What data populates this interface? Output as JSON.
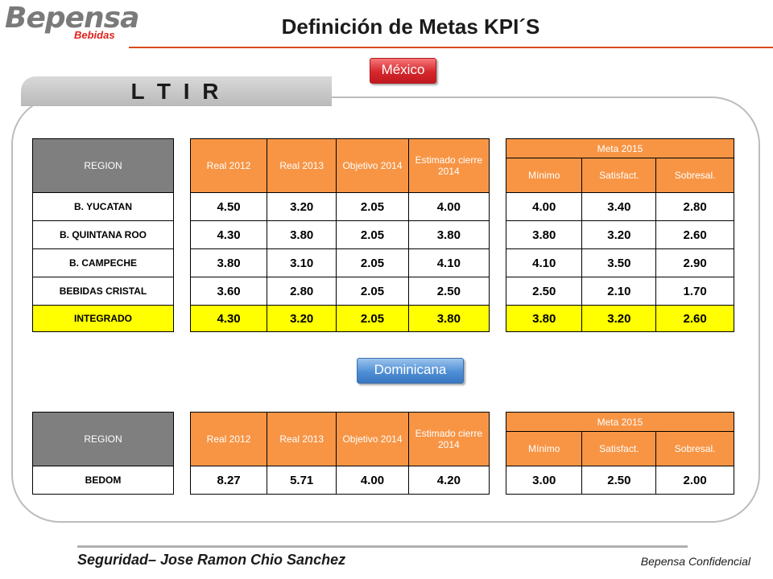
{
  "logo": {
    "brand": "Bepensa",
    "sub": "Bebidas",
    "accent": "#e0201b"
  },
  "title": "Definición de Metas KPI´S",
  "section": "L T I R",
  "mexico": {
    "label": "México",
    "headers": {
      "region": "REGION",
      "real2012": "Real  2012",
      "real2013": "Real  2013",
      "objetivo": "Objetivo 2014",
      "estimado": "Estimado cierre 2014",
      "meta": "Meta 2015",
      "minimo": "Mínimo",
      "satisfact": "Satisfact.",
      "sobresal": "Sobresal."
    },
    "rows": [
      {
        "region": "B. YUCATAN",
        "real2012": "4.50",
        "real2013": "3.20",
        "objetivo": "2.05",
        "estimado": "4.00",
        "minimo": "4.00",
        "satisfact": "3.40",
        "sobresal": "2.80"
      },
      {
        "region": "B. QUINTANA ROO",
        "real2012": "4.30",
        "real2013": "3.80",
        "objetivo": "2.05",
        "estimado": "3.80",
        "minimo": "3.80",
        "satisfact": "3.20",
        "sobresal": "2.60"
      },
      {
        "region": "B. CAMPECHE",
        "real2012": "3.80",
        "real2013": "3.10",
        "objetivo": "2.05",
        "estimado": "4.10",
        "minimo": "4.10",
        "satisfact": "3.50",
        "sobresal": "2.90"
      },
      {
        "region": "BEBIDAS CRISTAL",
        "real2012": "3.60",
        "real2013": "2.80",
        "objetivo": "2.05",
        "estimado": "2.50",
        "minimo": "2.50",
        "satisfact": "2.10",
        "sobresal": "1.70"
      },
      {
        "region": "INTEGRADO",
        "real2012": "4.30",
        "real2013": "3.20",
        "objetivo": "2.05",
        "estimado": "3.80",
        "minimo": "3.80",
        "satisfact": "3.20",
        "sobresal": "2.60"
      }
    ]
  },
  "dominicana": {
    "label": "Dominicana",
    "headers": {
      "region": "REGION",
      "real2012": "Real  2012",
      "real2013": "Real  2013",
      "objetivo": "Objetivo 2014",
      "estimado": "Estimado cierre 2014",
      "meta": "Meta 2015",
      "minimo": "Mínimo",
      "satisfact": "Satisfact.",
      "sobresal": "Sobresal."
    },
    "rows": [
      {
        "region": "BEDOM",
        "real2012": "8.27",
        "real2013": "5.71",
        "objetivo": "4.00",
        "estimado": "4.20",
        "minimo": "3.00",
        "satisfact": "2.50",
        "sobresal": "2.00"
      }
    ]
  },
  "footer": {
    "left": "Seguridad– Jose Ramon Chio Sanchez",
    "right": "Bepensa Confidencial"
  },
  "colors": {
    "orange": "#f79545",
    "gray": "#7f7f7f",
    "highlight": "#ffff00",
    "title_rule": "#d84a1b"
  }
}
